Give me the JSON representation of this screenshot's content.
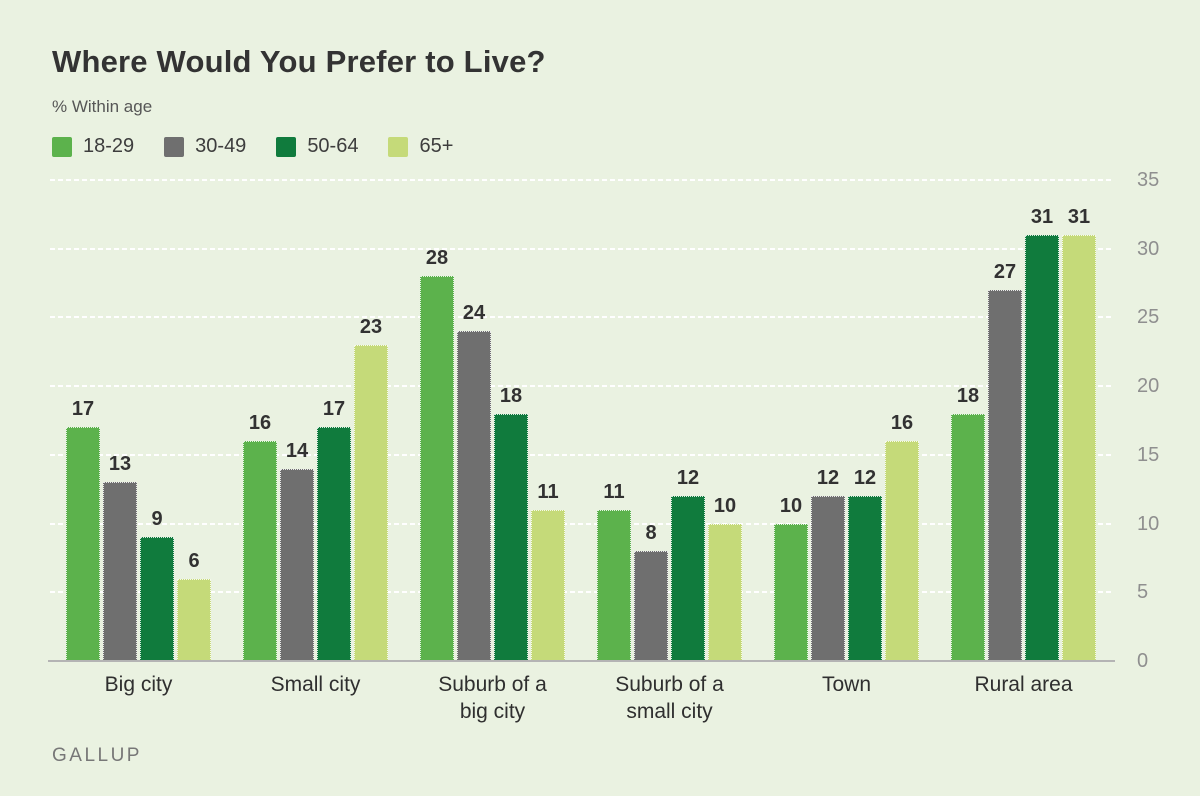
{
  "header": {
    "title": "Where Would You Prefer to Live?",
    "subtitle": "% Within age"
  },
  "footer": {
    "brand": "GALLUP"
  },
  "colors": {
    "background": "#eaf2e1",
    "title": "#333333",
    "subtitle": "#565656",
    "legend_label": "#3d3d3d",
    "gridline": "#ffffff",
    "baseline": "#b4b4b4",
    "value_label": "#323232",
    "category_label": "#2f2f2f",
    "axis_label": "#8f8f8f",
    "brand": "#777777"
  },
  "chart_data": {
    "type": "bar",
    "title": "Where Would You Prefer to Live?",
    "subtitle": "% Within age",
    "categories": [
      "Big city",
      "Small city",
      "Suburb of a big city",
      "Suburb of a small city",
      "Town",
      "Rural area"
    ],
    "series": [
      {
        "name": "18-29",
        "color": "#5cb24c",
        "values": [
          17,
          16,
          28,
          11,
          10,
          18
        ]
      },
      {
        "name": "30-49",
        "color": "#6f6f6f",
        "values": [
          13,
          14,
          24,
          8,
          12,
          27
        ]
      },
      {
        "name": "50-64",
        "color": "#107b3d",
        "values": [
          9,
          17,
          18,
          12,
          12,
          31
        ]
      },
      {
        "name": "65+",
        "color": "#c5da79",
        "values": [
          6,
          23,
          11,
          10,
          16,
          31
        ]
      }
    ],
    "xlabel": "",
    "ylabel": "",
    "ylim": [
      0,
      35
    ],
    "yticks": [
      0,
      5,
      10,
      15,
      20,
      25,
      30,
      35
    ],
    "yaxis_position": "right",
    "grid": true,
    "legend_position": "top",
    "value_labels": true
  }
}
